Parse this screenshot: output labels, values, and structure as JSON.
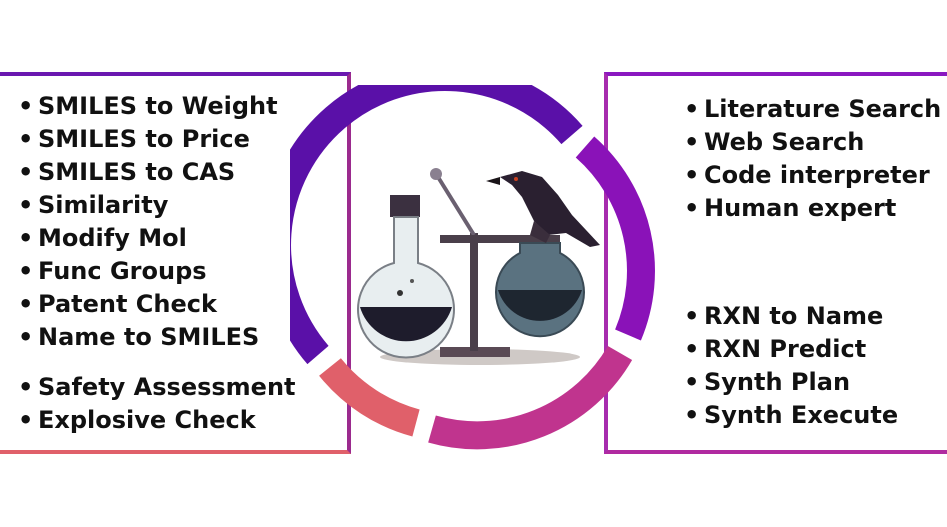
{
  "colors": {
    "segment_top": "#5a10a8",
    "segment_right": "#8a12b8",
    "segment_bottom": "#c0348e",
    "segment_left": "#e0606a",
    "ink": "#111111"
  },
  "left_panel": {
    "group_1": [
      "SMILES to Weight",
      "SMILES to Price",
      "SMILES to CAS",
      "Similarity",
      "Modify Mol",
      "Func Groups",
      "Patent Check",
      "Name to SMILES"
    ],
    "group_2": [
      "Safety Assessment",
      "Explosive Check"
    ]
  },
  "right_panel": {
    "group_1": [
      "Literature Search",
      "Web Search",
      "Code interpreter",
      "Human expert"
    ],
    "group_2": [
      "RXN to Name",
      "RXN Predict",
      "Synth Plan",
      "Synth Execute"
    ]
  },
  "center_icons": [
    "flask-stand-icon",
    "crow-icon"
  ]
}
